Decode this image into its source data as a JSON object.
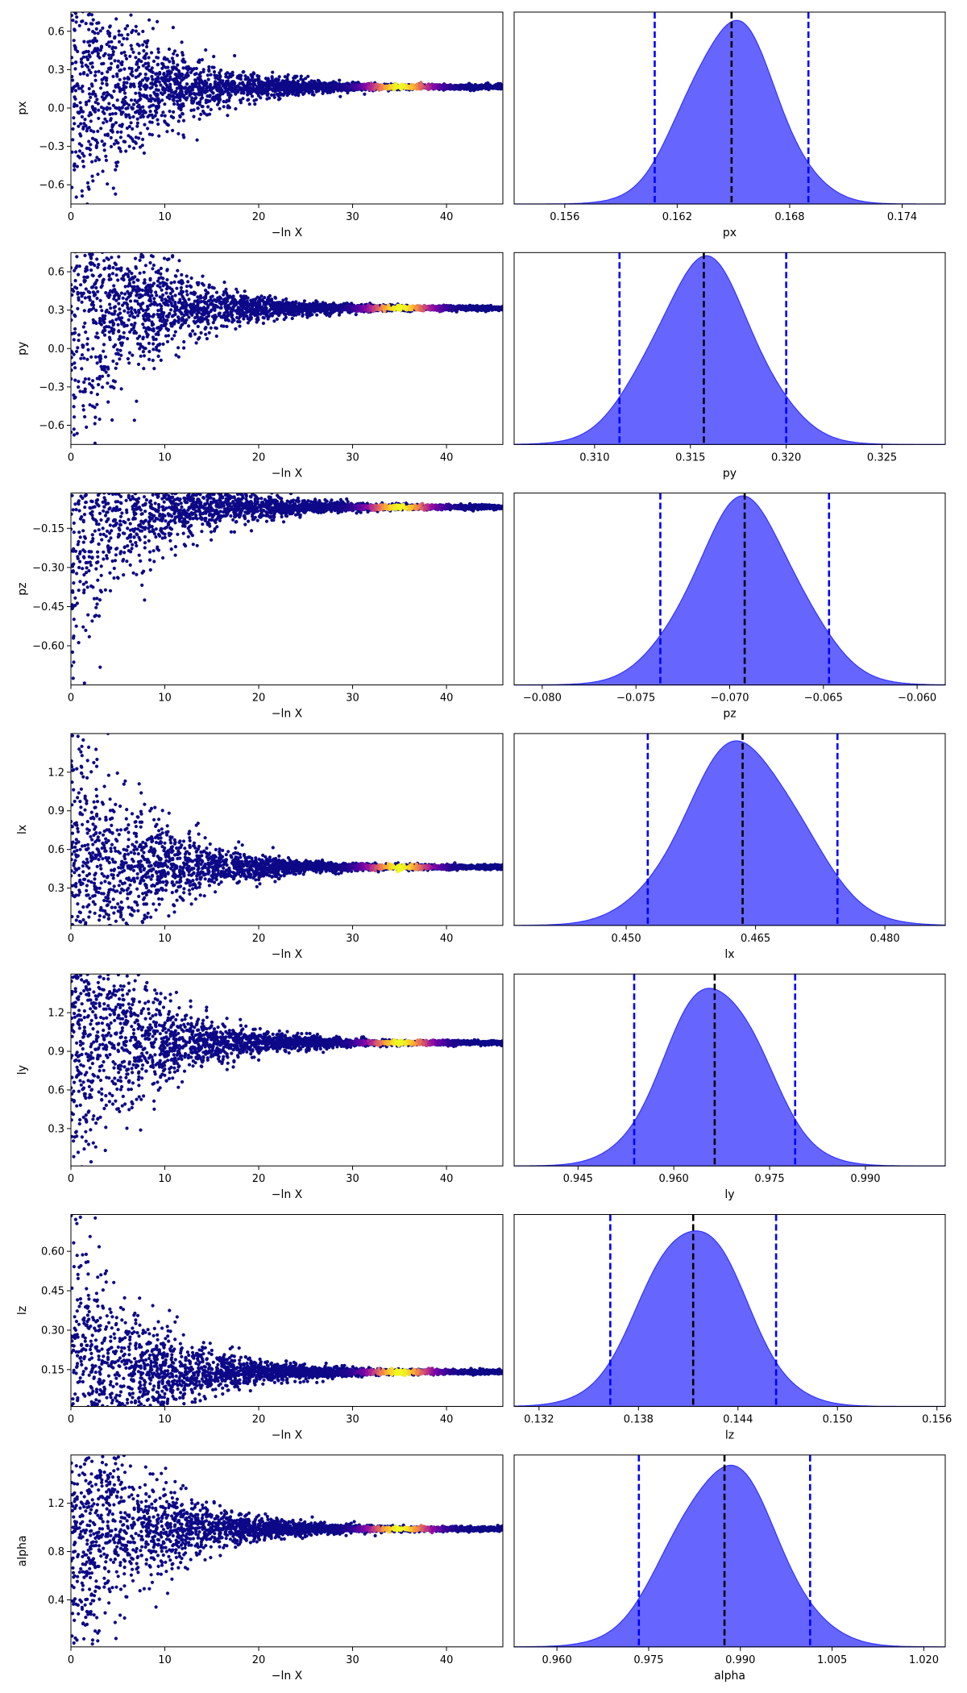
{
  "figure": {
    "type": "dynesty trace plot",
    "layout": "7 rows x 2 columns",
    "left_panel_kind": "scatter (samples vs -ln X), colored by importance weight",
    "right_panel_kind": "posterior marginal density with quantile lines",
    "scatter_colormap": "plasma",
    "scatter_low_color": "#0d0887",
    "density_fill_color": "#6666ff",
    "density_edge_color": "#3333ff",
    "quantile_line_color": "#0000ff",
    "median_line_color": "#000000",
    "trace_xlabel": "−ln X"
  },
  "chart_data": [
    {
      "param": "px",
      "trace": {
        "type": "scatter",
        "xlabel": "−ln X",
        "ylabel": "px",
        "xlim": [
          0,
          46
        ],
        "ylim": [
          -0.75,
          0.75
        ],
        "xticks": [
          0,
          10,
          20,
          30,
          40
        ],
        "yticks": [
          -0.6,
          -0.3,
          0.0,
          0.3,
          0.6
        ],
        "ytick_labels": [
          "−0.6",
          "−0.3",
          "0.0",
          "0.3",
          "0.6"
        ],
        "converged_value": 0.165
      },
      "posterior": {
        "type": "area",
        "xlabel": "px",
        "xlim": [
          0.1533,
          0.1763
        ],
        "xticks": [
          0.156,
          0.162,
          0.168,
          0.174
        ],
        "xtick_labels": [
          "0.156",
          "0.162",
          "0.168",
          "0.174"
        ],
        "mean": 0.1649,
        "sd": 0.0024,
        "quantiles": [
          0.1608,
          0.1649,
          0.169
        ]
      }
    },
    {
      "param": "py",
      "trace": {
        "type": "scatter",
        "xlabel": "−ln X",
        "ylabel": "py",
        "xlim": [
          0,
          46
        ],
        "ylim": [
          -0.75,
          0.75
        ],
        "xticks": [
          0,
          10,
          20,
          30,
          40
        ],
        "yticks": [
          -0.6,
          -0.3,
          0.0,
          0.3,
          0.6
        ],
        "ytick_labels": [
          "−0.6",
          "−0.3",
          "0.0",
          "0.3",
          "0.6"
        ],
        "converged_value": 0.316
      },
      "posterior": {
        "type": "area",
        "xlabel": "py",
        "xlim": [
          0.3058,
          0.3283
        ],
        "xticks": [
          0.31,
          0.315,
          0.32,
          0.325
        ],
        "xtick_labels": [
          "0.310",
          "0.315",
          "0.320",
          "0.325"
        ],
        "mean": 0.3157,
        "sd": 0.00265,
        "quantiles": [
          0.3113,
          0.3157,
          0.32
        ]
      }
    },
    {
      "param": "pz",
      "trace": {
        "type": "scatter",
        "xlabel": "−ln X",
        "ylabel": "pz",
        "xlim": [
          0,
          46
        ],
        "ylim": [
          -0.75,
          -0.015
        ],
        "xticks": [
          0,
          10,
          20,
          30,
          40
        ],
        "yticks": [
          -0.15,
          -0.3,
          -0.45,
          -0.6
        ],
        "ytick_labels": [
          "−0.15",
          "−0.30",
          "−0.45",
          "−0.60"
        ],
        "converged_value": -0.069
      },
      "posterior": {
        "type": "area",
        "xlabel": "pz",
        "xlim": [
          -0.0815,
          -0.0585
        ],
        "xticks": [
          -0.08,
          -0.075,
          -0.07,
          -0.065,
          -0.06
        ],
        "xtick_labels": [
          "−0.080",
          "−0.075",
          "−0.070",
          "−0.065",
          "−0.060"
        ],
        "mean": -0.0692,
        "sd": 0.0028,
        "quantiles": [
          -0.0737,
          -0.0692,
          -0.0647
        ]
      }
    },
    {
      "param": "lx",
      "trace": {
        "type": "scatter",
        "xlabel": "−ln X",
        "ylabel": "lx",
        "xlim": [
          0,
          46
        ],
        "ylim": [
          0.01,
          1.5
        ],
        "xticks": [
          0,
          10,
          20,
          30,
          40
        ],
        "yticks": [
          0.3,
          0.6,
          0.9,
          1.2
        ],
        "ytick_labels": [
          "0.3",
          "0.6",
          "0.9",
          "1.2"
        ],
        "converged_value": 0.463
      },
      "posterior": {
        "type": "area",
        "xlabel": "lx",
        "xlim": [
          0.437,
          0.487
        ],
        "xticks": [
          0.45,
          0.465,
          0.48
        ],
        "xtick_labels": [
          "0.450",
          "0.465",
          "0.480"
        ],
        "mean": 0.4635,
        "sd": 0.0067,
        "quantiles": [
          0.4525,
          0.4635,
          0.4745
        ]
      }
    },
    {
      "param": "ly",
      "trace": {
        "type": "scatter",
        "xlabel": "−ln X",
        "ylabel": "ly",
        "xlim": [
          0,
          46
        ],
        "ylim": [
          0.01,
          1.5
        ],
        "xticks": [
          0,
          10,
          20,
          30,
          40
        ],
        "yticks": [
          0.3,
          0.6,
          0.9,
          1.2
        ],
        "ytick_labels": [
          "0.3",
          "0.6",
          "0.9",
          "1.2"
        ],
        "converged_value": 0.966
      },
      "posterior": {
        "type": "area",
        "xlabel": "ly",
        "xlim": [
          0.935,
          1.0025
        ],
        "xticks": [
          0.945,
          0.96,
          0.975,
          0.99
        ],
        "xtick_labels": [
          "0.945",
          "0.960",
          "0.975",
          "0.990"
        ],
        "mean": 0.9664,
        "sd": 0.0076,
        "quantiles": [
          0.9538,
          0.9664,
          0.979
        ]
      }
    },
    {
      "param": "lz",
      "trace": {
        "type": "scatter",
        "xlabel": "−ln X",
        "ylabel": "lz",
        "xlim": [
          0,
          46
        ],
        "ylim": [
          0.01,
          0.74
        ],
        "xticks": [
          0,
          10,
          20,
          30,
          40
        ],
        "yticks": [
          0.15,
          0.3,
          0.45,
          0.6
        ],
        "ytick_labels": [
          "0.15",
          "0.30",
          "0.45",
          "0.60"
        ],
        "converged_value": 0.141
      },
      "posterior": {
        "type": "area",
        "xlabel": "lz",
        "xlim": [
          0.1305,
          0.1565
        ],
        "xticks": [
          0.132,
          0.138,
          0.144,
          0.15,
          0.156
        ],
        "xtick_labels": [
          "0.132",
          "0.138",
          "0.144",
          "0.150",
          "0.156"
        ],
        "mean": 0.1413,
        "sd": 0.003,
        "quantiles": [
          0.1363,
          0.1413,
          0.1463
        ]
      }
    },
    {
      "param": "alpha",
      "trace": {
        "type": "scatter",
        "xlabel": "−ln X",
        "ylabel": "alpha",
        "xlim": [
          0,
          46
        ],
        "ylim": [
          0.01,
          1.6
        ],
        "xticks": [
          0,
          10,
          20,
          30,
          40
        ],
        "yticks": [
          0.4,
          0.8,
          1.2
        ],
        "ytick_labels": [
          "0.4",
          "0.8",
          "1.2"
        ],
        "converged_value": 0.987
      },
      "posterior": {
        "type": "area",
        "xlabel": "alpha",
        "xlim": [
          0.953,
          1.0235
        ],
        "xticks": [
          0.96,
          0.975,
          0.99,
          1.005,
          1.02
        ],
        "xtick_labels": [
          "0.960",
          "0.975",
          "0.990",
          "1.005",
          "1.020"
        ],
        "mean": 0.9874,
        "sd": 0.0085,
        "quantiles": [
          0.9734,
          0.9874,
          1.0014
        ]
      }
    }
  ]
}
